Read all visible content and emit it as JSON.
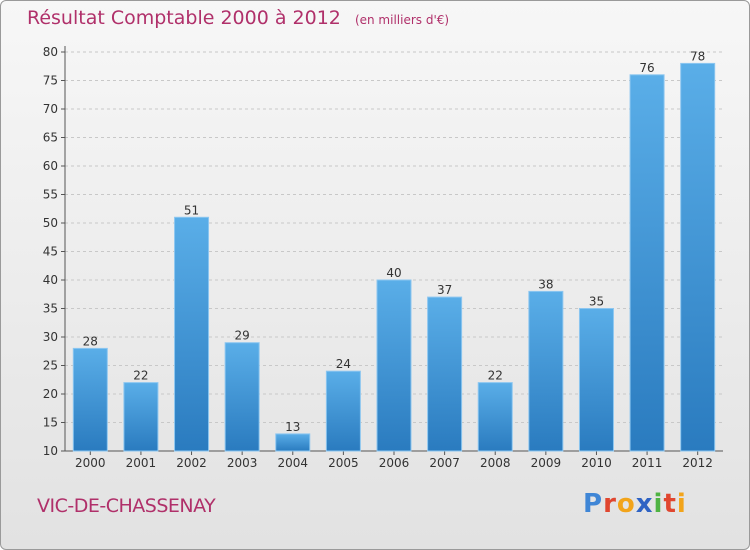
{
  "chart_data": {
    "type": "bar",
    "title": "Résultat Comptable 2000 à 2012",
    "subtitle": "(en milliers d'€)",
    "categories": [
      "2000",
      "2001",
      "2002",
      "2003",
      "2004",
      "2005",
      "2006",
      "2007",
      "2008",
      "2009",
      "2010",
      "2011",
      "2012"
    ],
    "values": [
      28,
      22,
      51,
      29,
      13,
      24,
      40,
      37,
      22,
      38,
      35,
      76,
      78
    ],
    "ylim": [
      10,
      80
    ],
    "yticks": [
      10,
      15,
      20,
      25,
      30,
      35,
      40,
      45,
      50,
      55,
      60,
      65,
      70,
      75,
      80
    ],
    "grid": true,
    "bar_color_top": "#5aaee8",
    "bar_color_bottom": "#2a7bbf"
  },
  "location": "VIC-DE-CHASSENAY",
  "brand": {
    "letters": [
      "P",
      "r",
      "o",
      "x",
      "i",
      "t",
      "i"
    ]
  }
}
